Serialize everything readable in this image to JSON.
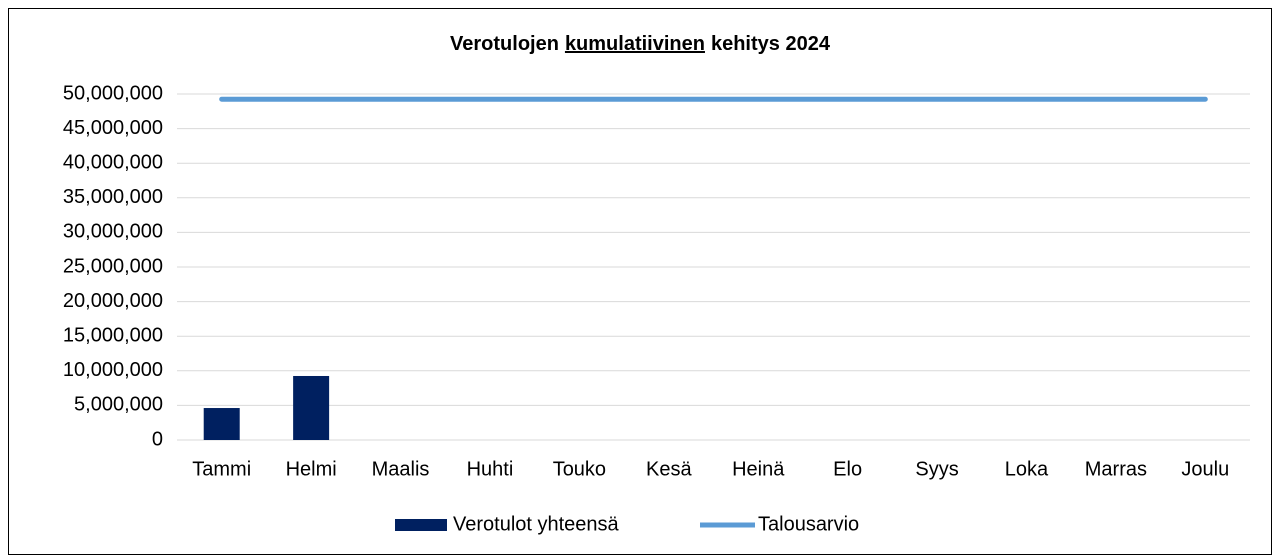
{
  "chart_data": {
    "type": "bar",
    "title": [
      "Verotulojen",
      "kumulatiivinen",
      "kehitys 2024"
    ],
    "title_underline": 1,
    "categories": [
      "Tammi",
      "Helmi",
      "Maalis",
      "Huhti",
      "Touko",
      "Kesä",
      "Heinä",
      "Elo",
      "Syys",
      "Loka",
      "Marras",
      "Joulu"
    ],
    "series": [
      {
        "name": "Verotulot yhteensä",
        "type": "bar",
        "color": "#002060",
        "values": [
          4620000,
          9250000,
          null,
          null,
          null,
          null,
          null,
          null,
          null,
          null,
          null,
          null
        ]
      },
      {
        "name": "Talousarvio",
        "type": "line",
        "color": "#5b9bd5",
        "values": [
          49250000,
          49250000,
          49250000,
          49250000,
          49250000,
          49250000,
          49250000,
          49250000,
          49250000,
          49250000,
          49250000,
          49250000
        ]
      }
    ],
    "ylim": [
      0,
      50000000
    ],
    "yticks": [
      0,
      {
        "value": 5000000,
        "label": "5,000,000"
      },
      {
        "value": 10000000,
        "label": "10,000,000"
      },
      {
        "value": 15000000,
        "label": "15,000,000"
      },
      {
        "value": 20000000,
        "label": "20,000,000"
      },
      {
        "value": 25000000,
        "label": "25,000,000"
      },
      {
        "value": 30000000,
        "label": "30,000,000"
      },
      {
        "value": 35000000,
        "label": "35,000,000"
      },
      {
        "value": 40000000,
        "label": "40,000,000"
      },
      {
        "value": 45000000,
        "label": "45,000,000"
      },
      {
        "value": 50000000,
        "label": "50,000,000"
      }
    ],
    "grid": true,
    "legend": "bottom"
  }
}
